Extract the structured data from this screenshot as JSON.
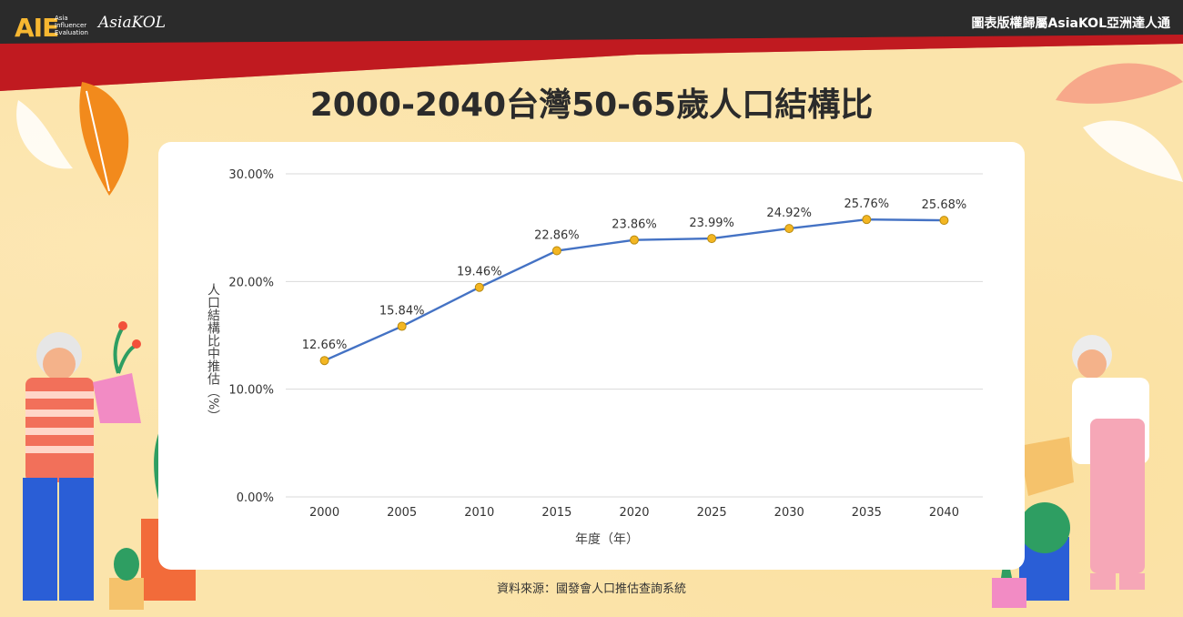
{
  "header": {
    "logo_aie": "AIE",
    "logo_aie_sub": [
      "Asia",
      "Influencer",
      "Evaluation"
    ],
    "logo_brand": "AsiaKOL",
    "copyright": "圖表版權歸屬AsiaKOL亞洲達人通"
  },
  "source": "資料來源：國發會人口推估查詢系統",
  "colors": {
    "line": "#4472c4",
    "marker": "#f3b622",
    "grid": "#d9d9d9",
    "header_dark": "#2b2b2b",
    "header_red": "#b3141b"
  },
  "chart_data": {
    "type": "line",
    "title": "2000-2040台灣50-65歲人口結構比",
    "xlabel": "年度（年）",
    "ylabel": "人口結構比中推估（%）",
    "ylim": [
      0,
      30
    ],
    "yticks": [
      0,
      10,
      20,
      30
    ],
    "ytick_labels": [
      "0.00%",
      "10.00%",
      "20.00%",
      "30.00%"
    ],
    "categories": [
      "2000",
      "2005",
      "2010",
      "2015",
      "2020",
      "2025",
      "2030",
      "2035",
      "2040"
    ],
    "series": [
      {
        "name": "人口結構比",
        "values": [
          12.66,
          15.84,
          19.46,
          22.86,
          23.86,
          23.99,
          24.92,
          25.76,
          25.68
        ],
        "labels": [
          "12.66%",
          "15.84%",
          "19.46%",
          "22.86%",
          "23.86%",
          "23.99%",
          "24.92%",
          "25.76%",
          "25.68%"
        ]
      }
    ]
  }
}
